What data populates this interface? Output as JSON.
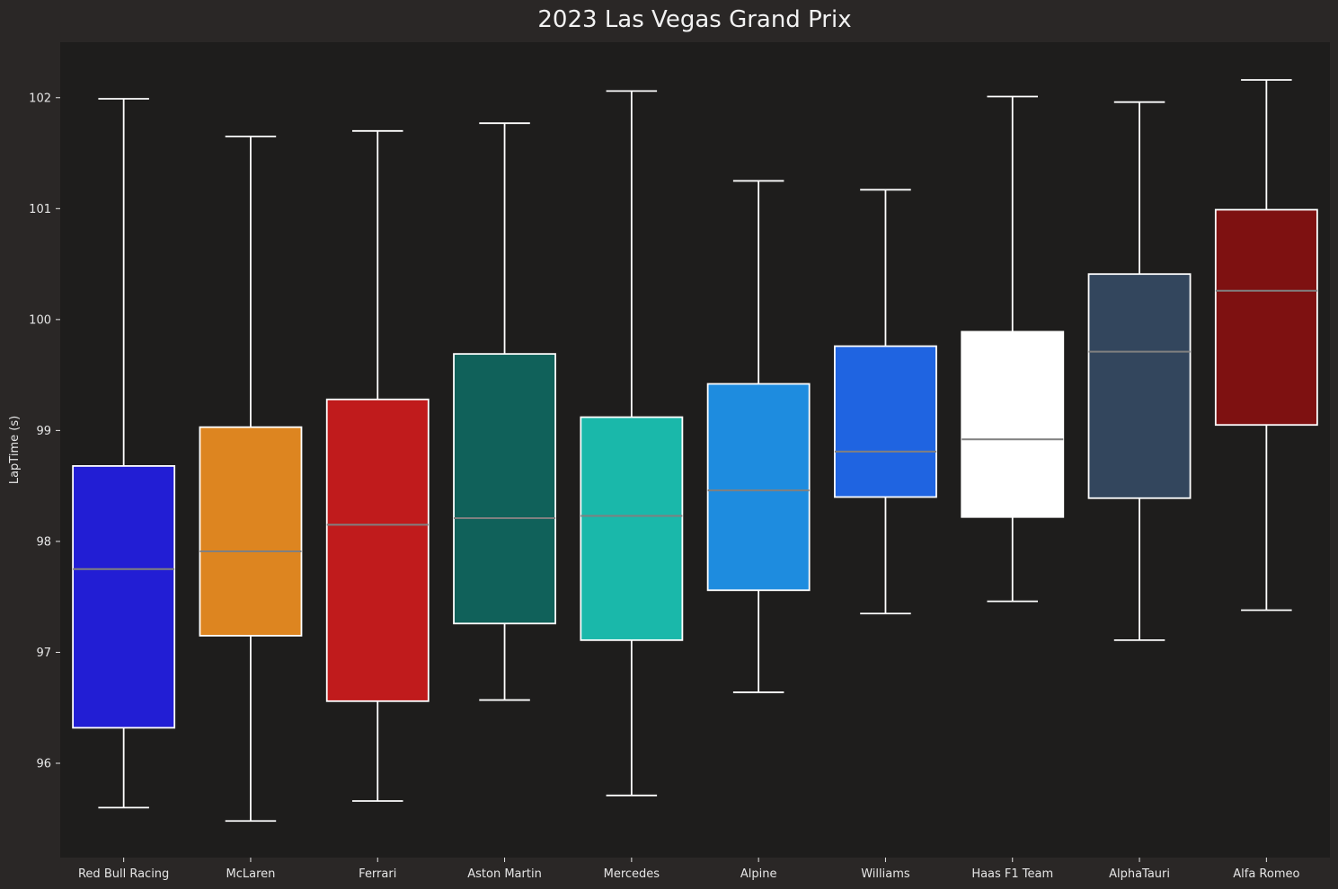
{
  "chart_data": {
    "type": "box",
    "title": "2023 Las Vegas Grand Prix",
    "xlabel": "",
    "ylabel": "LapTime (s)",
    "ylim": [
      95.15,
      102.5
    ],
    "yticks": [
      96,
      97,
      98,
      99,
      100,
      101,
      102
    ],
    "grid": false,
    "legend": "none",
    "colors": {
      "figure_background": "#2a2726",
      "axes_background": "#1e1d1c",
      "text": "#e6e6e6",
      "whisker": "#ffffff",
      "median": "#808080"
    },
    "categories": [
      "Red Bull Racing",
      "McLaren",
      "Ferrari",
      "Aston Martin",
      "Mercedes",
      "Alpine",
      "Williams",
      "Haas F1 Team",
      "AlphaTauri",
      "Alfa Romeo"
    ],
    "boxes": [
      {
        "team": "Red Bull Racing",
        "color": "#221ed4",
        "min": 95.6,
        "q1": 96.32,
        "median": 97.75,
        "q3": 98.68,
        "max": 101.99
      },
      {
        "team": "McLaren",
        "color": "#dd8520",
        "min": 95.48,
        "q1": 97.15,
        "median": 97.91,
        "q3": 99.03,
        "max": 101.65
      },
      {
        "team": "Ferrari",
        "color": "#c01b1c",
        "min": 95.66,
        "q1": 96.56,
        "median": 98.15,
        "q3": 99.28,
        "max": 101.7
      },
      {
        "team": "Aston Martin",
        "color": "#10615a",
        "min": 96.57,
        "q1": 97.26,
        "median": 98.21,
        "q3": 99.69,
        "max": 101.77
      },
      {
        "team": "Mercedes",
        "color": "#1ab8aa",
        "min": 95.71,
        "q1": 97.11,
        "median": 98.23,
        "q3": 99.12,
        "max": 102.06
      },
      {
        "team": "Alpine",
        "color": "#1e8cdf",
        "min": 96.64,
        "q1": 97.56,
        "median": 98.46,
        "q3": 99.42,
        "max": 101.25
      },
      {
        "team": "Williams",
        "color": "#1f64e1",
        "min": 97.35,
        "q1": 98.4,
        "median": 98.81,
        "q3": 99.76,
        "max": 101.17
      },
      {
        "team": "Haas F1 Team",
        "color": "#ffffff",
        "min": 97.46,
        "q1": 98.22,
        "median": 98.92,
        "q3": 99.89,
        "max": 102.01
      },
      {
        "team": "AlphaTauri",
        "color": "#33465d",
        "min": 97.11,
        "q1": 98.39,
        "median": 99.71,
        "q3": 100.41,
        "max": 101.96
      },
      {
        "team": "Alfa Romeo",
        "color": "#7e1111",
        "min": 97.38,
        "q1": 99.05,
        "median": 100.26,
        "q3": 100.99,
        "max": 102.16
      }
    ]
  }
}
